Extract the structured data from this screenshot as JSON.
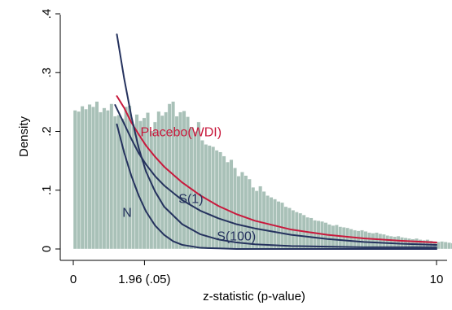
{
  "chart_data": {
    "type": "histogram",
    "title": "",
    "xlabel": "z-statistic (p-value)",
    "ylabel": "Density",
    "xlim": [
      -0.3,
      10.2
    ],
    "ylim": [
      -0.012,
      0.42
    ],
    "grid": false,
    "legend": "none",
    "x_ticks": [
      {
        "value": 0,
        "label": "0"
      },
      {
        "value": 1.96,
        "label": "1.96 (.05)"
      },
      {
        "value": 10,
        "label": "10"
      }
    ],
    "y_ticks": [
      {
        "value": 0,
        "label": "0"
      },
      {
        "value": 0.1,
        "label": ".1"
      },
      {
        "value": 0.2,
        "label": ".2"
      },
      {
        "value": 0.3,
        "label": ".3"
      },
      {
        "value": 0.4,
        "label": ".4"
      }
    ],
    "histogram": {
      "bin_start": 0,
      "bin_width": 0.1,
      "fill": "#a9c1b8",
      "edge": "#ffffff",
      "densities": [
        0.236,
        0.234,
        0.243,
        0.238,
        0.246,
        0.242,
        0.251,
        0.233,
        0.24,
        0.236,
        0.247,
        0.226,
        0.228,
        0.222,
        0.242,
        0.244,
        0.212,
        0.229,
        0.218,
        0.223,
        0.232,
        0.201,
        0.216,
        0.234,
        0.227,
        0.233,
        0.247,
        0.251,
        0.226,
        0.233,
        0.235,
        0.225,
        0.208,
        0.2,
        0.216,
        0.185,
        0.178,
        0.176,
        0.174,
        0.168,
        0.165,
        0.158,
        0.148,
        0.152,
        0.138,
        0.124,
        0.131,
        0.125,
        0.119,
        0.105,
        0.099,
        0.107,
        0.098,
        0.091,
        0.088,
        0.085,
        0.081,
        0.079,
        0.072,
        0.07,
        0.066,
        0.063,
        0.061,
        0.058,
        0.054,
        0.053,
        0.049,
        0.048,
        0.047,
        0.045,
        0.042,
        0.04,
        0.041,
        0.038,
        0.037,
        0.036,
        0.034,
        0.032,
        0.031,
        0.032,
        0.03,
        0.028,
        0.027,
        0.028,
        0.026,
        0.025,
        0.023,
        0.022,
        0.021,
        0.022,
        0.02,
        0.019,
        0.018,
        0.017,
        0.018,
        0.016,
        0.015,
        0.016,
        0.014,
        0.013,
        0.012,
        0.013,
        0.012,
        0.011,
        0.01,
        0.011,
        0.009,
        0.01,
        0.009,
        0.008,
        0.009,
        0.008,
        0.007,
        0.008,
        0.007,
        0.006,
        0.007,
        0.006,
        0.006,
        0.005,
        0.006,
        0.005,
        0.005,
        0.004,
        0.005,
        0.004,
        0.004,
        0.004,
        0.003,
        0.004,
        0.003,
        0.003,
        0.003,
        0.003,
        0.002,
        0.003,
        0.002,
        0.002,
        0.002,
        0.002,
        0.002,
        0.002,
        0.002,
        0.002,
        0.001,
        0.002,
        0.001,
        0.001,
        0.001,
        0.001,
        0.001,
        0.001,
        0.001,
        0.001,
        0.001,
        0.001,
        0.001,
        0.001,
        0.001,
        0.001,
        0.001,
        0.001,
        0.001,
        0.001,
        0.001,
        0.001,
        0.001,
        0.001,
        0.001,
        0.001,
        0.001,
        0.001,
        0.001,
        0.001,
        0.001,
        0.001,
        0.001,
        0.001,
        0.001,
        0.001,
        0.001,
        0.001,
        0.001,
        0.001,
        0.001,
        0.001,
        0.001,
        0.001,
        0.001,
        0.001,
        0.001,
        0.001,
        0.001,
        0.001,
        0.001,
        0.001,
        0.001,
        0.001,
        0.001,
        0.001
      ]
    },
    "series": [
      {
        "name": "Placebo(WDI)",
        "color": "#c8193c",
        "x": [
          1.2,
          1.4,
          1.6,
          1.8,
          2.0,
          2.25,
          2.5,
          3.0,
          3.5,
          4.0,
          4.5,
          5.0,
          6.0,
          7.0,
          8.0,
          9.0,
          10.0
        ],
        "y": [
          0.26,
          0.24,
          0.215,
          0.195,
          0.176,
          0.157,
          0.14,
          0.113,
          0.091,
          0.073,
          0.059,
          0.048,
          0.033,
          0.024,
          0.018,
          0.014,
          0.011
        ]
      },
      {
        "name": "S(1)",
        "color": "#25325e",
        "x": [
          1.15,
          1.4,
          1.6,
          1.8,
          2.0,
          2.25,
          2.5,
          3.0,
          3.5,
          4.0,
          4.5,
          5.0,
          6.0,
          7.0,
          8.0,
          9.0,
          10.0
        ],
        "y": [
          0.245,
          0.213,
          0.187,
          0.163,
          0.144,
          0.124,
          0.108,
          0.083,
          0.065,
          0.052,
          0.042,
          0.035,
          0.024,
          0.017,
          0.012,
          0.009,
          0.007
        ]
      },
      {
        "name": "S(100)",
        "color": "#25325e",
        "x": [
          1.2,
          1.4,
          1.6,
          1.8,
          2.0,
          2.25,
          2.5,
          3.0,
          3.5,
          4.0,
          4.5,
          5.0,
          6.0,
          7.0,
          8.0,
          9.0,
          10.0
        ],
        "y": [
          0.365,
          0.29,
          0.225,
          0.172,
          0.132,
          0.098,
          0.072,
          0.042,
          0.025,
          0.016,
          0.011,
          0.008,
          0.005,
          0.004,
          0.003,
          0.003,
          0.003
        ]
      },
      {
        "name": "N",
        "color": "#25325e",
        "x": [
          1.2,
          1.4,
          1.6,
          1.8,
          2.0,
          2.25,
          2.5,
          2.75,
          3.0,
          3.5,
          4.0,
          4.5,
          5.0,
          6.0,
          7.0,
          8.0,
          9.0,
          10.0
        ],
        "y": [
          0.212,
          0.164,
          0.124,
          0.091,
          0.064,
          0.04,
          0.024,
          0.013,
          0.007,
          0.002,
          0.001,
          0.0,
          0.0,
          0.0,
          0.0,
          0.0,
          0.0,
          0.0
        ]
      }
    ],
    "annotations": [
      {
        "text": "Placebo(WDI)",
        "x": 1.85,
        "y": 0.192,
        "color": "#c8193c"
      },
      {
        "text": "S(1)",
        "x": 2.9,
        "y": 0.078,
        "color": "#25325e"
      },
      {
        "text": "S(100)",
        "x": 3.95,
        "y": 0.0145,
        "color": "#25325e"
      },
      {
        "text": "N",
        "x": 1.35,
        "y": 0.055,
        "color": "#25325e"
      }
    ]
  }
}
